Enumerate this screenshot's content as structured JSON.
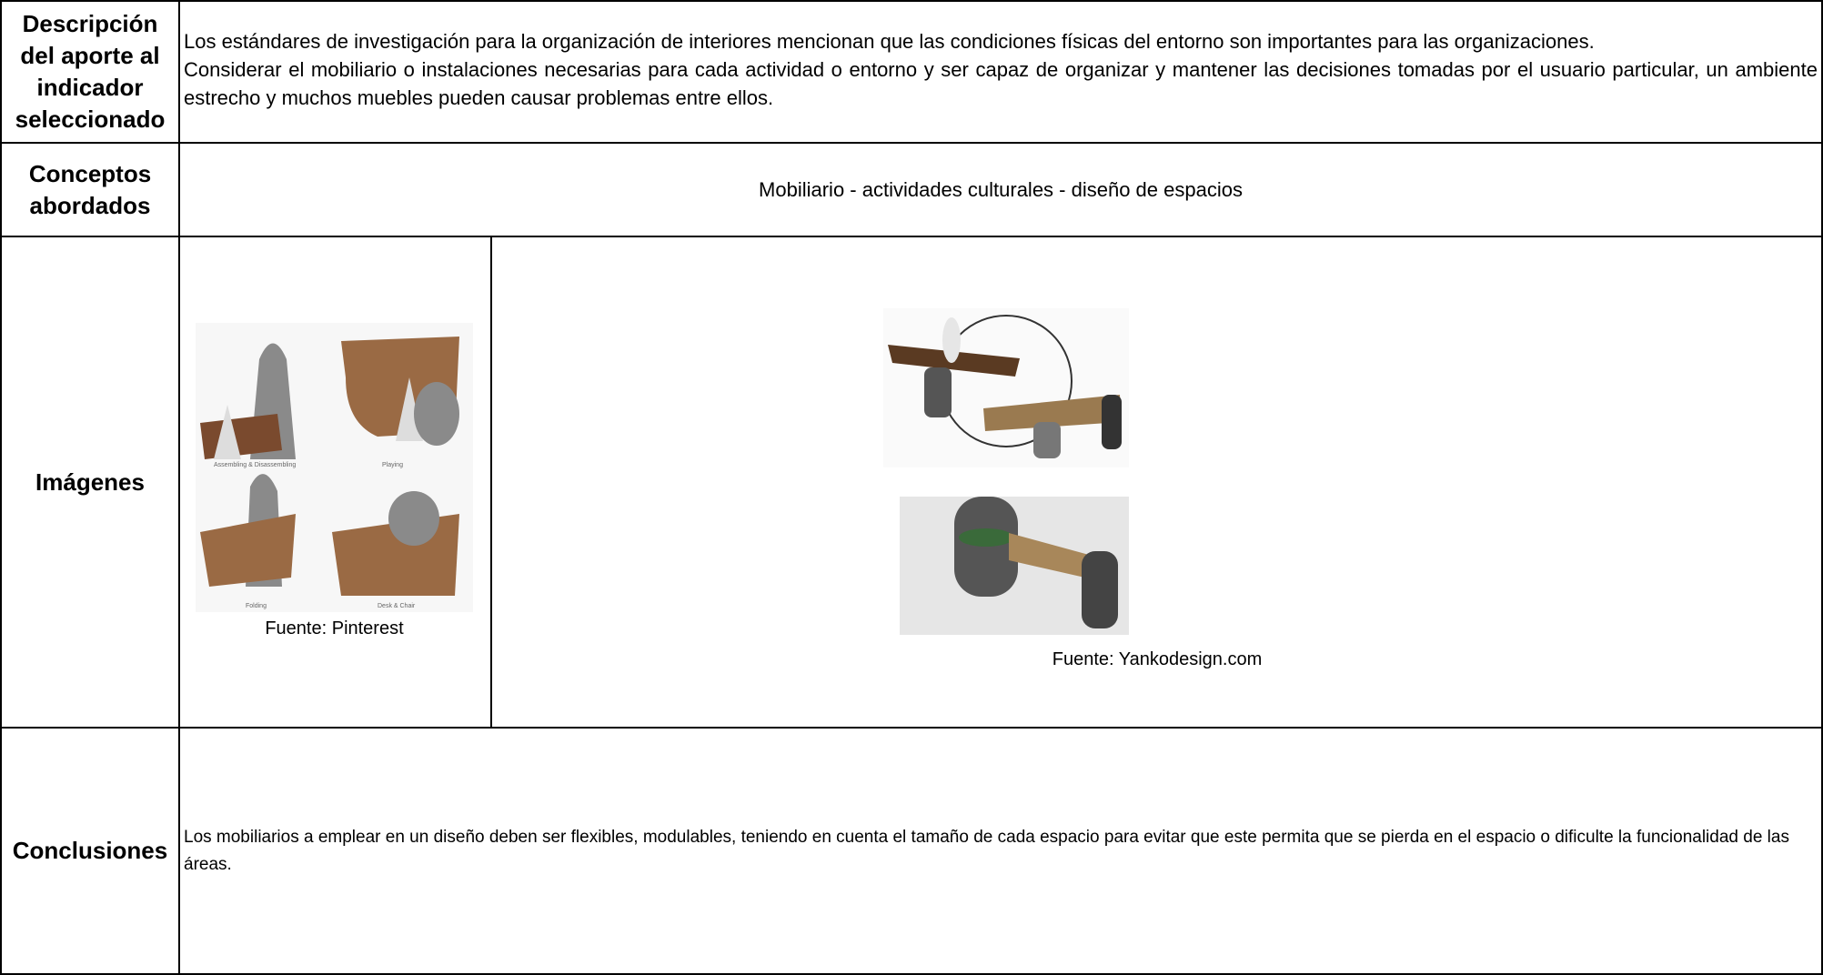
{
  "rows": [
    {
      "label": "Descripción del aporte al indicador seleccionado",
      "paragraphs": [
        "Los estándares de investigación para la organización de interiores mencionan que las condiciones físicas del entorno son importantes para las organizaciones.",
        "Considerar el mobiliario o instalaciones necesarias para cada actividad o entorno y ser capaz de organizar y mantener las decisiones tomadas por el usuario particular, un ambiente estrecho y muchos muebles pueden causar problemas entre ellos."
      ]
    },
    {
      "label": "Conceptos abordados",
      "text": "Mobiliario - actividades culturales - diseño de espacios"
    },
    {
      "label": "Imágenes",
      "images": [
        {
          "caption": "Fuente: Pinterest",
          "panel_labels": [
            "Assembling & Disassembling",
            "Playing",
            "Folding",
            "Desk & Chair"
          ]
        },
        {
          "caption": "Fuente: Yankodesign.com"
        }
      ]
    },
    {
      "label": "Conclusiones",
      "text": "Los mobiliarios a emplear en un diseño deben ser flexibles, modulables, teniendo en cuenta el tamaño de cada espacio para evitar que este permita que se pierda en el espacio o dificulte la funcionalidad de las áreas."
    }
  ]
}
